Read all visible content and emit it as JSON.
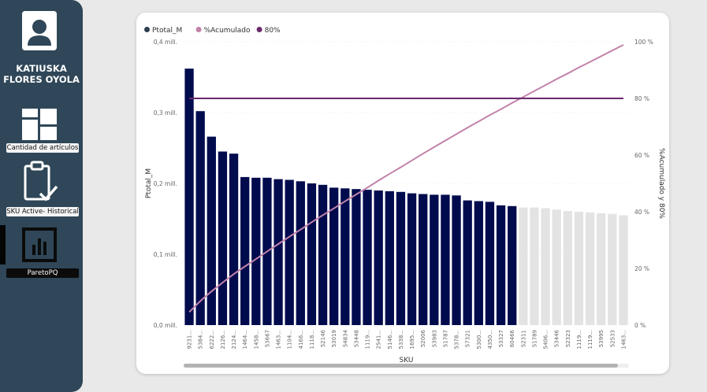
{
  "sidebar": {
    "user_name_line1": "KATIUSKA",
    "user_name_line2": "FLORES OYOLA",
    "nav": [
      {
        "label": "Cantidad de artículos",
        "icon": "dashboard-icon"
      },
      {
        "label": "SKU Active- Historical",
        "icon": "clipboard-check-icon"
      },
      {
        "label": "ParetoPQ",
        "icon": "bar-chart-icon",
        "active": true
      }
    ]
  },
  "colors": {
    "bar_selected": "#000b4d",
    "bar_dim": "#e3e3e3",
    "cumulative_line": "#c283aa",
    "threshold_line": "#6a2a6c",
    "sidebar_bg": "#2f4758"
  },
  "chart_data": {
    "type": "bar",
    "legend": [
      {
        "name": "Ptotal_M",
        "color": "#2d4050"
      },
      {
        "name": "%Acumulado",
        "color": "#c283aa"
      },
      {
        "name": "80%",
        "color": "#6a2a6c"
      }
    ],
    "legend_position": "top-left",
    "xlabel": "SKU",
    "ylabel": "Ptotal_M",
    "y2label": "%Acumulado y 80%",
    "yticks": [
      "0,0 mill.",
      "0,1 mill.",
      "0,2 mill.",
      "0,3 mill.",
      "0,4 mill."
    ],
    "y2ticks": [
      "0 %",
      "20 %",
      "40 %",
      "60 %",
      "80 %",
      "100 %"
    ],
    "ylim": [
      0,
      0.4
    ],
    "y2lim": [
      0,
      100
    ],
    "grid": true,
    "categories": [
      "9231...",
      "5384...",
      "6222...",
      "2126...",
      "2124...",
      "1464...",
      "1458...",
      "53667",
      "1463...",
      "1104...",
      "4166...",
      "1118...",
      "52146",
      "53019",
      "54834",
      "53448",
      "1119...",
      "2541...",
      "5146...",
      "5338...",
      "1695...",
      "52006",
      "53983",
      "51787",
      "5378...",
      "57321",
      "5300...",
      "4350...",
      "53327",
      "60466",
      "52311",
      "51789",
      "5406...",
      "53446",
      "52323",
      "1119...",
      "1119...",
      "53995",
      "52533",
      "1463..."
    ],
    "values": [
      0.362,
      0.302,
      0.266,
      0.245,
      0.242,
      0.209,
      0.208,
      0.208,
      0.206,
      0.205,
      0.203,
      0.2,
      0.198,
      0.194,
      0.193,
      0.192,
      0.191,
      0.19,
      0.189,
      0.188,
      0.186,
      0.185,
      0.184,
      0.184,
      0.183,
      0.176,
      0.175,
      0.174,
      0.169,
      0.168,
      0.166,
      0.166,
      0.165,
      0.163,
      0.161,
      0.16,
      0.159,
      0.158,
      0.157,
      0.155
    ],
    "selected_count": 30,
    "cumulative_pct": [
      4.6,
      8.5,
      11.9,
      15.0,
      18.0,
      20.7,
      23.3,
      26.0,
      28.6,
      31.2,
      33.7,
      36.3,
      38.8,
      41.2,
      43.7,
      46.1,
      48.5,
      51.0,
      53.4,
      55.7,
      58.1,
      60.5,
      62.8,
      65.1,
      67.4,
      69.7,
      71.9,
      74.1,
      76.2,
      78.4,
      80.5,
      82.6,
      84.7,
      86.8,
      88.8,
      90.9,
      92.9,
      94.9,
      96.9,
      98.9
    ],
    "threshold_pct": 80
  }
}
